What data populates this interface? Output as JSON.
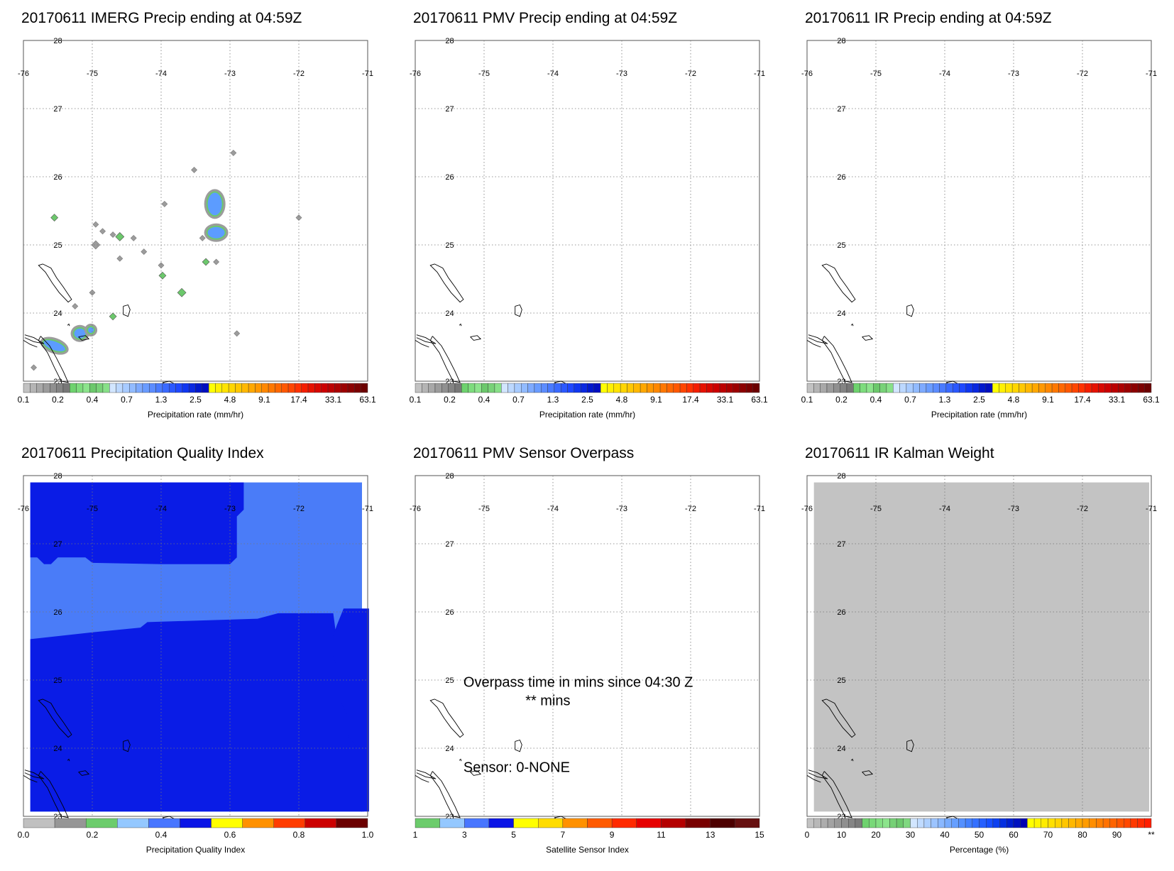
{
  "panels": [
    {
      "id": "imerg",
      "title": "20170611 IMERG Precip ending at 04:59Z",
      "kind": "precip",
      "legend": "precip"
    },
    {
      "id": "pmv",
      "title": "20170611 PMV Precip ending at 04:59Z",
      "kind": "empty",
      "legend": "precip"
    },
    {
      "id": "ir",
      "title": "20170611 IR Precip ending at 04:59Z",
      "kind": "empty",
      "legend": "precip"
    },
    {
      "id": "pqi",
      "title": "20170611 Precipitation Quality Index",
      "kind": "quality",
      "legend": "quality"
    },
    {
      "id": "overpass",
      "title": "20170611 PMV Sensor Overpass",
      "kind": "overpass",
      "legend": "sensor",
      "overpass_text": "Overpass time in mins since 04:30 Z",
      "overpass_value": "** mins",
      "sensor_text": "Sensor:   0-NONE"
    },
    {
      "id": "kalman",
      "title": "20170611 IR Kalman Weight",
      "kind": "kalman",
      "legend": "percent"
    }
  ],
  "map": {
    "lon_labels": [
      "-76",
      "-75",
      "-74",
      "-73",
      "-72",
      "-71"
    ],
    "lat_labels": [
      "28",
      "27",
      "26",
      "25",
      "24",
      "23"
    ]
  },
  "legends": {
    "precip": {
      "label": "Precipitation rate (mm/hr)",
      "ticks": [
        "0.1",
        "0.2",
        "0.4",
        "0.7",
        "1.3",
        "2.5",
        "4.8",
        "9.1",
        "17.4",
        "33.1",
        "63.1"
      ],
      "colors": [
        "#c2c2c2",
        "#b4b4b4",
        "#a8a8a8",
        "#9c9c9c",
        "#909090",
        "#848484",
        "#787878",
        "#6ed26e",
        "#7ddc7d",
        "#8ce48c",
        "#6cc86c",
        "#78d278",
        "#88e088",
        "#d2e6ff",
        "#bcd8ff",
        "#a8cbff",
        "#92bbff",
        "#7eaaff",
        "#6a9cff",
        "#5c8cff",
        "#4a7bff",
        "#3a6aff",
        "#2b58ff",
        "#1f48ff",
        "#1036f0",
        "#0a28e0",
        "#0018cc",
        "#000fc0",
        "#ffff00",
        "#fff000",
        "#ffe400",
        "#ffd600",
        "#ffc800",
        "#ffb800",
        "#ffa800",
        "#ff9800",
        "#ff8800",
        "#ff7800",
        "#ff6800",
        "#ff5800",
        "#ff4600",
        "#ff3200",
        "#f41e00",
        "#e61200",
        "#d80800",
        "#cc0000",
        "#bc0000",
        "#ac0000",
        "#9c0000",
        "#8c0000",
        "#7c0000",
        "#6c0000"
      ]
    },
    "quality": {
      "label": "Precipitation Quality Index",
      "ticks": [
        "0.0",
        "0.2",
        "0.4",
        "0.6",
        "0.8",
        "1.0"
      ],
      "colors": [
        "#c0c0c0",
        "#969696",
        "#6ccc6c",
        "#94c8ff",
        "#4876ff",
        "#0a14e6",
        "#ffff00",
        "#ff9100",
        "#ff3c00",
        "#cc0000",
        "#6b0000"
      ]
    },
    "sensor": {
      "label": "Satellite Sensor Index",
      "ticks": [
        "1",
        "3",
        "5",
        "7",
        "9",
        "11",
        "13",
        "15"
      ],
      "colors": [
        "#6ccc6c",
        "#94c8ff",
        "#4876ff",
        "#0a14e6",
        "#ffff00",
        "#ffdc00",
        "#ff9100",
        "#ff5a00",
        "#ff2a00",
        "#e60000",
        "#b40000",
        "#780000",
        "#4c0000",
        "#661010"
      ]
    },
    "percent": {
      "label": "Percentage (%)",
      "ticks": [
        "0",
        "10",
        "20",
        "30",
        "40",
        "50",
        "60",
        "70",
        "80",
        "90",
        "**"
      ],
      "colors": [
        "#c2c2c2",
        "#b8b8b8",
        "#adadad",
        "#a3a3a3",
        "#999999",
        "#8f8f8f",
        "#858585",
        "#7b7b7b",
        "#6ed26e",
        "#78d878",
        "#82de82",
        "#8ce48c",
        "#76d076",
        "#6cc86c",
        "#80d880",
        "#d2e6ff",
        "#c0dbff",
        "#aed0ff",
        "#9cc4ff",
        "#8ab8ff",
        "#78acff",
        "#669fff",
        "#5490ff",
        "#4280ff",
        "#3470ff",
        "#2660ff",
        "#1850ff",
        "#0c40f0",
        "#0530e0",
        "#0020d0",
        "#0012c0",
        "#0000b0",
        "#ffff00",
        "#fff600",
        "#ffec00",
        "#ffe000",
        "#ffd400",
        "#ffc600",
        "#ffb800",
        "#ffaa00",
        "#ff9c00",
        "#ff8e00",
        "#ff8000",
        "#ff7200",
        "#ff6400",
        "#ff5600",
        "#ff4800",
        "#ff3a00",
        "#ff2c00",
        "#ff1e00"
      ]
    }
  },
  "colors": {
    "quality_dark": "#0a1ce6",
    "quality_light": "#4a7cf8",
    "kalman_gray": "#c3c3c3",
    "precip_gray": "#9c9c9c",
    "precip_green": "#6cc86c",
    "precip_blue": "#5c9cff"
  }
}
